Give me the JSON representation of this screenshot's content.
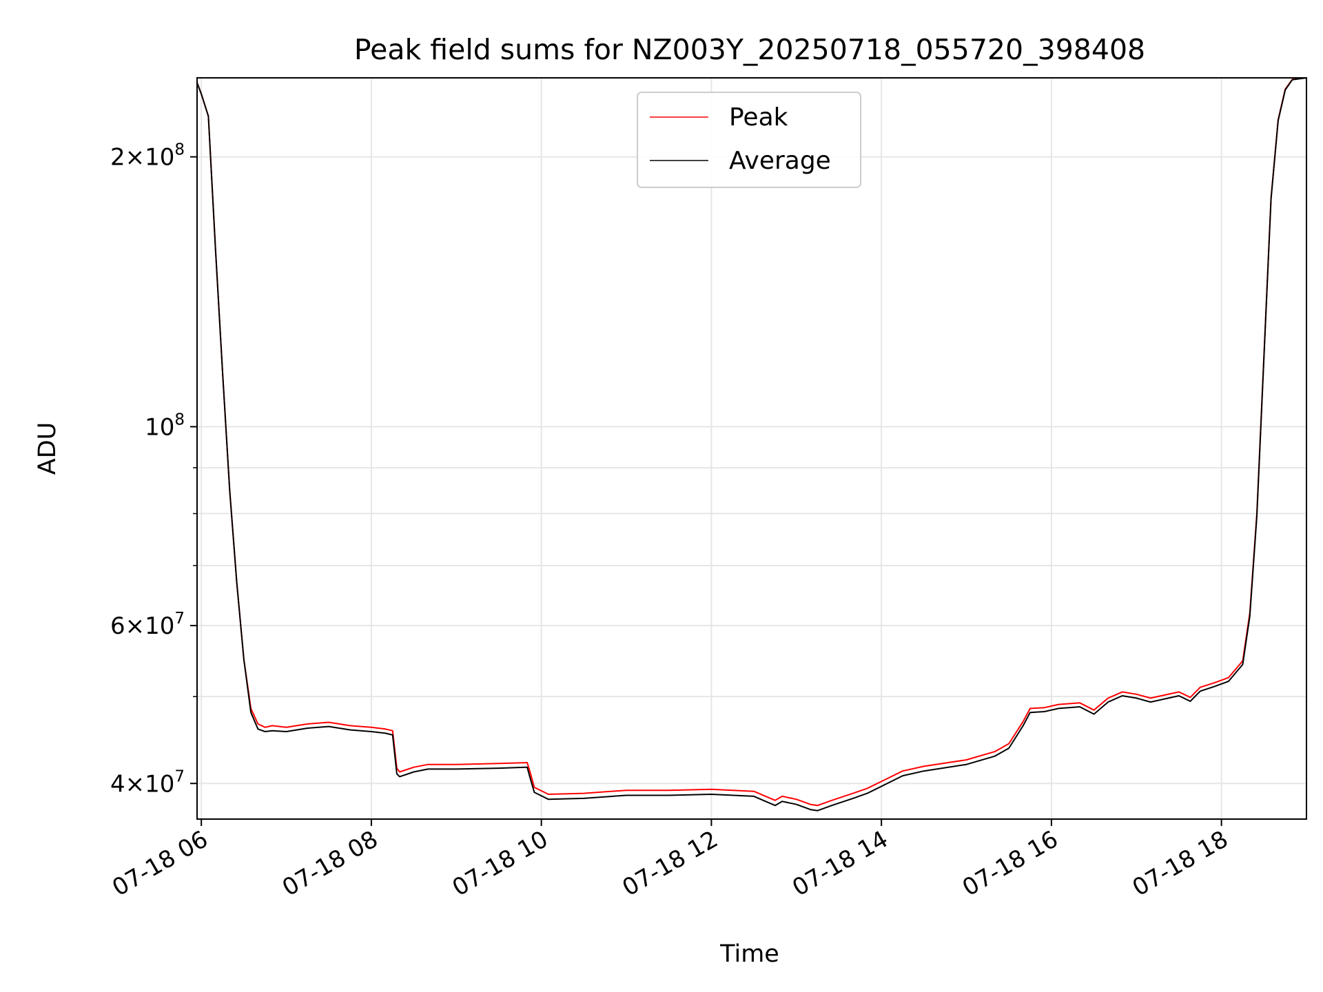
{
  "chart_data": {
    "type": "line",
    "title": "Peak field sums for NZ003Y_20250718_055720_398408",
    "xlabel": "Time",
    "ylabel": "ADU",
    "yscale": "log",
    "xlim": [
      "2025-07-18 05:57",
      "2025-07-18 19:00"
    ],
    "ylim": [
      36500000,
      245000000
    ],
    "grid": true,
    "legend_position": "top-center",
    "x_ticks": [
      "07-18 06",
      "07-18 08",
      "07-18 10",
      "07-18 12",
      "07-18 14",
      "07-18 16",
      "07-18 18"
    ],
    "y_ticks": [
      {
        "value": 40000000,
        "mantissa": "4",
        "exponent": "7"
      },
      {
        "value": 60000000,
        "mantissa": "6",
        "exponent": "7"
      },
      {
        "value": 100000000,
        "mantissa": "",
        "exponent": "8"
      },
      {
        "value": 200000000,
        "mantissa": "2",
        "exponent": "8"
      }
    ],
    "y_minor_ticks": [
      50000000,
      70000000,
      80000000,
      90000000
    ],
    "x": [
      "05:57",
      "06:00",
      "06:05",
      "06:10",
      "06:15",
      "06:20",
      "06:25",
      "06:30",
      "06:35",
      "06:40",
      "06:45",
      "06:50",
      "07:00",
      "07:15",
      "07:30",
      "07:45",
      "08:00",
      "08:10",
      "08:15",
      "08:18",
      "08:20",
      "08:30",
      "08:40",
      "09:00",
      "09:30",
      "09:50",
      "09:52",
      "09:55",
      "10:05",
      "10:30",
      "11:00",
      "11:30",
      "12:00",
      "12:30",
      "12:40",
      "12:45",
      "12:50",
      "13:00",
      "13:10",
      "13:15",
      "13:25",
      "13:40",
      "13:50",
      "14:00",
      "14:15",
      "14:30",
      "15:00",
      "15:20",
      "15:30",
      "15:40",
      "15:45",
      "15:55",
      "16:05",
      "16:20",
      "16:30",
      "16:40",
      "16:50",
      "17:00",
      "17:10",
      "17:30",
      "17:38",
      "17:45",
      "17:55",
      "18:05",
      "18:15",
      "18:20",
      "18:25",
      "18:30",
      "18:35",
      "18:40",
      "18:45",
      "18:50",
      "19:00"
    ],
    "series": [
      {
        "name": "Peak",
        "color": "#ff0000",
        "values": [
          242000000,
          235000000,
          222000000,
          158000000,
          115000000,
          85000000,
          67000000,
          55000000,
          48500000,
          46600000,
          46200000,
          46400000,
          46200000,
          46600000,
          46800000,
          46400000,
          46200000,
          46000000,
          45800000,
          41600000,
          41200000,
          41700000,
          42000000,
          42000000,
          42100000,
          42200000,
          41200000,
          39600000,
          38900000,
          39000000,
          39300000,
          39300000,
          39400000,
          39200000,
          38600000,
          38300000,
          38700000,
          38400000,
          37900000,
          37800000,
          38300000,
          39000000,
          39500000,
          40200000,
          41300000,
          41800000,
          42500000,
          43400000,
          44300000,
          46900000,
          48500000,
          48600000,
          49000000,
          49200000,
          48300000,
          49800000,
          50600000,
          50300000,
          49800000,
          50600000,
          49900000,
          51200000,
          51800000,
          52500000,
          54800000,
          62000000,
          80000000,
          120000000,
          180000000,
          220000000,
          238000000,
          244000000,
          245000000
        ]
      },
      {
        "name": "Average",
        "color": "#000000",
        "values": [
          242000000,
          235000000,
          222000000,
          158000000,
          115000000,
          85000000,
          67000000,
          55000000,
          48000000,
          46000000,
          45700000,
          45800000,
          45700000,
          46100000,
          46300000,
          45900000,
          45700000,
          45500000,
          45300000,
          41000000,
          40700000,
          41200000,
          41500000,
          41500000,
          41600000,
          41700000,
          40600000,
          39100000,
          38400000,
          38500000,
          38800000,
          38800000,
          38900000,
          38700000,
          38100000,
          37800000,
          38200000,
          37900000,
          37400000,
          37300000,
          37800000,
          38500000,
          39000000,
          39700000,
          40800000,
          41300000,
          42000000,
          42900000,
          43800000,
          46400000,
          48000000,
          48100000,
          48500000,
          48700000,
          47800000,
          49300000,
          50100000,
          49800000,
          49300000,
          50100000,
          49400000,
          50700000,
          51300000,
          52000000,
          54300000,
          61500000,
          79500000,
          119500000,
          179500000,
          219500000,
          237500000,
          243800000,
          245000000
        ]
      }
    ]
  }
}
